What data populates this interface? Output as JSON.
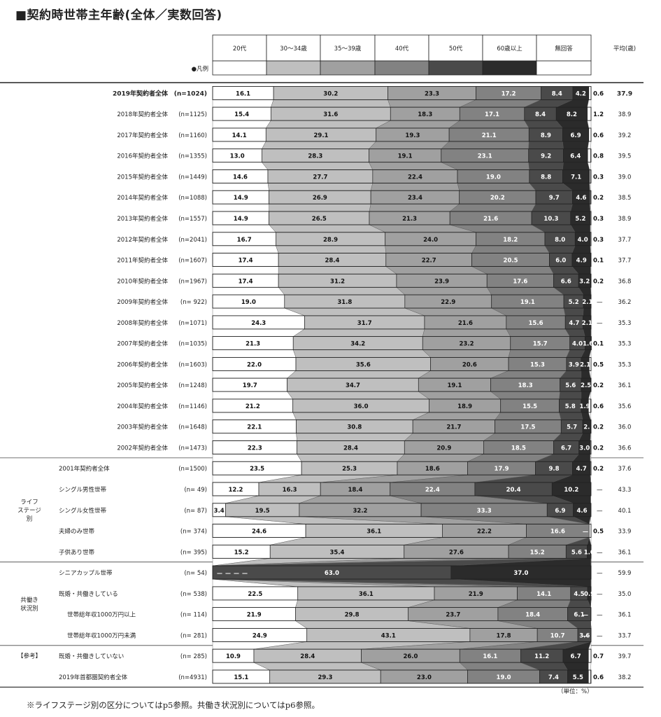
{
  "title": "■契約時世帯主年齢(全体／実数回答)",
  "footnote": "※ライフステージ別の区分についてはp5参照。共働き状況別についてはp6参照。",
  "unit": "（単位：%）",
  "legend_label": "●凡例",
  "avg_header": "平均(歳)",
  "dash": "—",
  "colors": [
    "#ffffff",
    "#bfbfbf",
    "#a0a0a0",
    "#828282",
    "#4a4a4a",
    "#2b2b2b",
    "#ffffff"
  ],
  "groups": [
    {
      "label": "ライフ\nステージ\n別",
      "first_row": 18,
      "last_row": 22
    },
    {
      "label": "共働き\n状況別",
      "first_row": 23,
      "last_row": 26
    },
    {
      "label": "【参考】",
      "first_row": 27,
      "last_row": 27
    }
  ],
  "chart_data": {
    "type": "bar",
    "stacked": true,
    "orientation": "horizontal",
    "title": "■契約時世帯主年齢(全体／実数回答)",
    "categories": [
      "20代",
      "30～34歳",
      "35～39歳",
      "40代",
      "50代",
      "60歳以上",
      "無回答"
    ],
    "xlim": [
      0,
      100
    ],
    "rows": [
      {
        "label": "2019年契約者全体",
        "n": "(n=1024)",
        "values": [
          16.1,
          30.2,
          23.3,
          17.2,
          8.4,
          4.2,
          0.6
        ],
        "labels": [
          "16.1",
          "30.2",
          "23.3",
          "17.2",
          "8.4",
          "4.2",
          "0.6"
        ],
        "avg": "37.9",
        "bold": true
      },
      {
        "label": "2018年契約者全体",
        "n": "(n=1125)",
        "values": [
          15.4,
          31.6,
          18.3,
          17.1,
          8.4,
          8.2,
          1.2
        ],
        "labels": [
          "15.4",
          "31.6",
          "18.3",
          "17.1",
          "8.4",
          "8.2",
          "1.2"
        ],
        "avg": "38.9"
      },
      {
        "label": "2017年契約者全体",
        "n": "(n=1160)",
        "values": [
          14.1,
          29.1,
          19.3,
          21.1,
          8.9,
          6.9,
          0.6
        ],
        "labels": [
          "14.1",
          "29.1",
          "19.3",
          "21.1",
          "8.9",
          "6.9",
          "0.6"
        ],
        "avg": "39.2"
      },
      {
        "label": "2016年契約者全体",
        "n": "(n=1355)",
        "values": [
          13.0,
          28.3,
          19.1,
          23.1,
          9.2,
          6.4,
          0.8
        ],
        "labels": [
          "13.0",
          "28.3",
          "19.1",
          "23.1",
          "9.2",
          "6.4",
          "0.8"
        ],
        "avg": "39.5"
      },
      {
        "label": "2015年契約者全体",
        "n": "(n=1449)",
        "values": [
          14.6,
          27.7,
          22.4,
          19.0,
          8.8,
          7.1,
          0.3
        ],
        "labels": [
          "14.6",
          "27.7",
          "22.4",
          "19.0",
          "8.8",
          "7.1",
          "0.3"
        ],
        "avg": "39.0"
      },
      {
        "label": "2014年契約者全体",
        "n": "(n=1088)",
        "values": [
          14.9,
          26.9,
          23.4,
          20.2,
          9.7,
          4.6,
          0.2
        ],
        "labels": [
          "14.9",
          "26.9",
          "23.4",
          "20.2",
          "9.7",
          "4.6",
          "0.2"
        ],
        "avg": "38.5"
      },
      {
        "label": "2013年契約者全体",
        "n": "(n=1557)",
        "values": [
          14.9,
          26.5,
          21.3,
          21.6,
          10.3,
          5.2,
          0.3
        ],
        "labels": [
          "14.9",
          "26.5",
          "21.3",
          "21.6",
          "10.3",
          "5.2",
          "0.3"
        ],
        "avg": "38.9"
      },
      {
        "label": "2012年契約者全体",
        "n": "(n=2041)",
        "values": [
          16.7,
          28.9,
          24.0,
          18.2,
          8.0,
          4.0,
          0.3
        ],
        "labels": [
          "16.7",
          "28.9",
          "24.0",
          "18.2",
          "8.0",
          "4.0",
          "0.3"
        ],
        "avg": "37.7"
      },
      {
        "label": "2011年契約者全体",
        "n": "(n=1607)",
        "values": [
          17.4,
          28.4,
          22.7,
          20.5,
          6.0,
          4.9,
          0.1
        ],
        "labels": [
          "17.4",
          "28.4",
          "22.7",
          "20.5",
          "6.0",
          "4.9",
          "0.1"
        ],
        "avg": "37.7"
      },
      {
        "label": "2010年契約者全体",
        "n": "(n=1967)",
        "values": [
          17.4,
          31.2,
          23.9,
          17.6,
          6.6,
          3.2,
          0.2
        ],
        "labels": [
          "17.4",
          "31.2",
          "23.9",
          "17.6",
          "6.6",
          "3.2",
          "0.2"
        ],
        "avg": "36.8"
      },
      {
        "label": "2009年契約者全体",
        "n": "(n= 922)",
        "values": [
          19.0,
          31.8,
          22.9,
          19.1,
          5.2,
          2.1,
          0
        ],
        "labels": [
          "19.0",
          "31.8",
          "22.9",
          "19.1",
          "5.2",
          "2.1",
          ""
        ],
        "avg": "36.2"
      },
      {
        "label": "2008年契約者全体",
        "n": "(n=1071)",
        "values": [
          24.3,
          31.7,
          21.6,
          15.6,
          4.7,
          2.1,
          0
        ],
        "labels": [
          "24.3",
          "31.7",
          "21.6",
          "15.6",
          "4.7",
          "2.1",
          ""
        ],
        "avg": "35.3"
      },
      {
        "label": "2007年契約者全体",
        "n": "(n=1035)",
        "values": [
          21.3,
          34.2,
          23.2,
          15.7,
          4.0,
          1.6,
          0.1
        ],
        "labels": [
          "21.3",
          "34.2",
          "23.2",
          "15.7",
          "4.0",
          "1.6",
          "0.1"
        ],
        "avg": "35.3"
      },
      {
        "label": "2006年契約者全体",
        "n": "(n=1603)",
        "values": [
          22.0,
          35.6,
          20.6,
          15.3,
          3.9,
          2.1,
          0.5
        ],
        "labels": [
          "22.0",
          "35.6",
          "20.6",
          "15.3",
          "3.9",
          "2.1",
          "0.5"
        ],
        "avg": "35.3"
      },
      {
        "label": "2005年契約者全体",
        "n": "(n=1248)",
        "values": [
          19.7,
          34.7,
          19.1,
          18.3,
          5.6,
          2.5,
          0.2
        ],
        "labels": [
          "19.7",
          "34.7",
          "19.1",
          "18.3",
          "5.6",
          "2.5",
          "0.2"
        ],
        "avg": "36.1"
      },
      {
        "label": "2004年契約者全体",
        "n": "(n=1146)",
        "values": [
          21.2,
          36.0,
          18.9,
          15.5,
          5.8,
          1.9,
          0.6
        ],
        "labels": [
          "21.2",
          "36.0",
          "18.9",
          "15.5",
          "5.8",
          "1.9",
          "0.6"
        ],
        "avg": "35.6"
      },
      {
        "label": "2003年契約者全体",
        "n": "(n=1648)",
        "values": [
          22.1,
          30.8,
          21.7,
          17.5,
          5.7,
          2.1,
          0.2
        ],
        "labels": [
          "22.1",
          "30.8",
          "21.7",
          "17.5",
          "5.7",
          "2.",
          "0.2"
        ],
        "avg": "36.0"
      },
      {
        "label": "2002年契約者全体",
        "n": "(n=1473)",
        "values": [
          22.3,
          28.4,
          20.9,
          18.5,
          6.7,
          3.0,
          0.2
        ],
        "labels": [
          "22.3",
          "28.4",
          "20.9",
          "18.5",
          "6.7",
          "3.0",
          "0.2"
        ],
        "avg": "36.6"
      },
      {
        "label": "2001年契約者全体",
        "n": "(n=1500)",
        "values": [
          23.5,
          25.3,
          18.6,
          17.9,
          9.8,
          4.7,
          0.2
        ],
        "labels": [
          "23.5",
          "25.3",
          "18.6",
          "17.9",
          "9.8",
          "4.7",
          "0.2"
        ],
        "avg": "37.6"
      },
      {
        "label": "シングル男性世帯",
        "n": "(n=  49)",
        "values": [
          12.2,
          16.3,
          18.4,
          22.4,
          20.4,
          10.2,
          0
        ],
        "labels": [
          "12.2",
          "16.3",
          "18.4",
          "22.4",
          "20.4",
          "10.2",
          ""
        ],
        "avg": "43.3"
      },
      {
        "label": "シングル女性世帯",
        "n": "(n=  87)",
        "values": [
          3.4,
          19.5,
          32.2,
          33.3,
          6.9,
          4.6,
          0
        ],
        "labels": [
          "3.4",
          "19.5",
          "32.2",
          "33.3",
          "6.9",
          "4.6",
          ""
        ],
        "avg": "40.1"
      },
      {
        "label": "夫婦のみ世帯",
        "n": "(n= 374)",
        "values": [
          24.6,
          36.1,
          22.2,
          16.6,
          0,
          0,
          0.5
        ],
        "labels": [
          "24.6",
          "36.1",
          "22.2",
          "16.6",
          "—",
          "—",
          "0.5"
        ],
        "avg": "33.9"
      },
      {
        "label": "子供あり世帯",
        "n": "(n= 395)",
        "values": [
          15.2,
          35.4,
          27.6,
          15.2,
          5.6,
          1.0,
          0
        ],
        "labels": [
          "15.2",
          "35.4",
          "27.6",
          "15.2",
          "5.6",
          "1.0",
          ""
        ],
        "avg": "36.1"
      },
      {
        "label": "シニアカップル世帯",
        "n": "(n=  54)",
        "values": [
          0,
          0,
          0,
          0,
          63.0,
          37.0,
          0
        ],
        "labels": [
          "—",
          "—",
          "—",
          "—",
          "63.0",
          "37.0",
          ""
        ],
        "avg": "59.9"
      },
      {
        "label": "既婚・共働きしている",
        "n": "(n= 538)",
        "values": [
          22.5,
          36.1,
          21.9,
          14.1,
          4.5,
          0.9,
          0
        ],
        "labels": [
          "22.5",
          "36.1",
          "21.9",
          "14.1",
          "4.5",
          "0.9",
          ""
        ],
        "avg": "35.0"
      },
      {
        "label": "世帯総年収1000万円以上",
        "n": "(n= 114)",
        "values": [
          21.9,
          29.8,
          23.7,
          18.4,
          6.1,
          0,
          0
        ],
        "labels": [
          "21.9",
          "29.8",
          "23.7",
          "18.4",
          "6.1",
          "—",
          ""
        ],
        "avg": "36.1",
        "indent": true
      },
      {
        "label": "世帯総年収1000万円未満",
        "n": "(n= 281)",
        "values": [
          24.9,
          43.1,
          17.8,
          10.7,
          3.6,
          0,
          0
        ],
        "labels": [
          "24.9",
          "43.1",
          "17.8",
          "10.7",
          "3.6",
          "—",
          ""
        ],
        "avg": "33.7",
        "indent": true
      },
      {
        "label": "既婚・共働きしていない",
        "n": "(n= 285)",
        "values": [
          10.9,
          28.4,
          26.0,
          16.1,
          11.2,
          6.7,
          0.7
        ],
        "labels": [
          "10.9",
          "28.4",
          "26.0",
          "16.1",
          "11.2",
          "6.7",
          "0.7"
        ],
        "avg": "39.7"
      },
      {
        "label": "2019年首都圏契約者全体",
        "n": "(n=4931)",
        "values": [
          15.1,
          29.3,
          23.0,
          19.0,
          7.4,
          5.5,
          0.6
        ],
        "labels": [
          "15.1",
          "29.3",
          "23.0",
          "19.0",
          "7.4",
          "5.5",
          "0.6"
        ],
        "avg": "38.2"
      }
    ]
  }
}
